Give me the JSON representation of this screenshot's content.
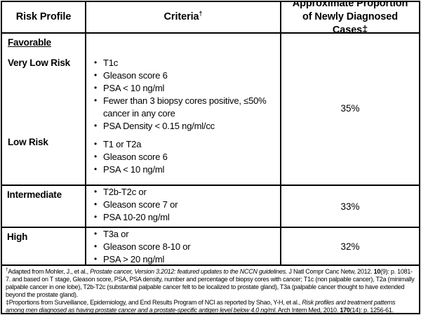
{
  "header": {
    "risk_profile": "Risk Profile",
    "criteria": "Criteria",
    "criteria_sup": "†",
    "proportion": "Approximate Proportion of Newly Diagnosed Cases‡"
  },
  "rows": {
    "favorable": {
      "group_label": "Favorable",
      "very_low": {
        "label": "Very Low Risk",
        "criteria": [
          "T1c",
          "Gleason score 6",
          "PSA < 10 ng/ml",
          "Fewer than 3 biopsy cores positive, ≤50% cancer in any core",
          "PSA Density < 0.15 ng/ml/cc"
        ]
      },
      "low": {
        "label": "Low Risk",
        "criteria": [
          "T1 or T2a",
          "Gleason score 6",
          "PSA < 10 ng/ml"
        ]
      },
      "proportion": "35%"
    },
    "intermediate": {
      "label": "Intermediate",
      "criteria": [
        "T2b-T2c or",
        "Gleason score 7 or",
        "PSA 10-20 ng/ml"
      ],
      "proportion": "33%"
    },
    "high": {
      "label": "High",
      "criteria": [
        "T3a or",
        "Gleason score 8-10 or",
        "PSA > 20 ng/ml"
      ],
      "proportion": "32%"
    }
  },
  "footnotes": {
    "dagger": {
      "symbol": "†",
      "pre_italic": "Adapted  from Mohler, J., et al., ",
      "italic": "Prostate cancer, Version 3.2012: featured updates to the NCCN guidelines.",
      "mid": " J Natl Compr Canc Netw, 2012. ",
      "bold": "10",
      "post": "(9): p. 1081-7.  and based on T stage, Gleason score, PSA, PSA density, number and percentage of biopsy cores with cancer; T1c (non palpable cancer), T2a (minimally palpable cancer in one lobe), T2b-T2c (substantial palpable cancer felt to be localized to prostate gland), T3a (palpable cancer thought to have extended beyond the prostate gland)."
    },
    "double_dagger": {
      "symbol": "‡",
      "pre_italic": "Proportions from Surveillance, Epidemiology, and End Results Program of NCI as reported by Shao, Y-H, et al., ",
      "italic": "Risk profiles and treatment patterns among men diagnosed as having prostate cancer and a prostate-specific antigen level below 4.0 ng/ml.",
      "mid": " Arch Intern Med, 2010. ",
      "bold": "170",
      "post": "(14): p. 1256-61."
    }
  },
  "colors": {
    "border": "#000000",
    "background": "#ffffff",
    "text": "#000000"
  }
}
